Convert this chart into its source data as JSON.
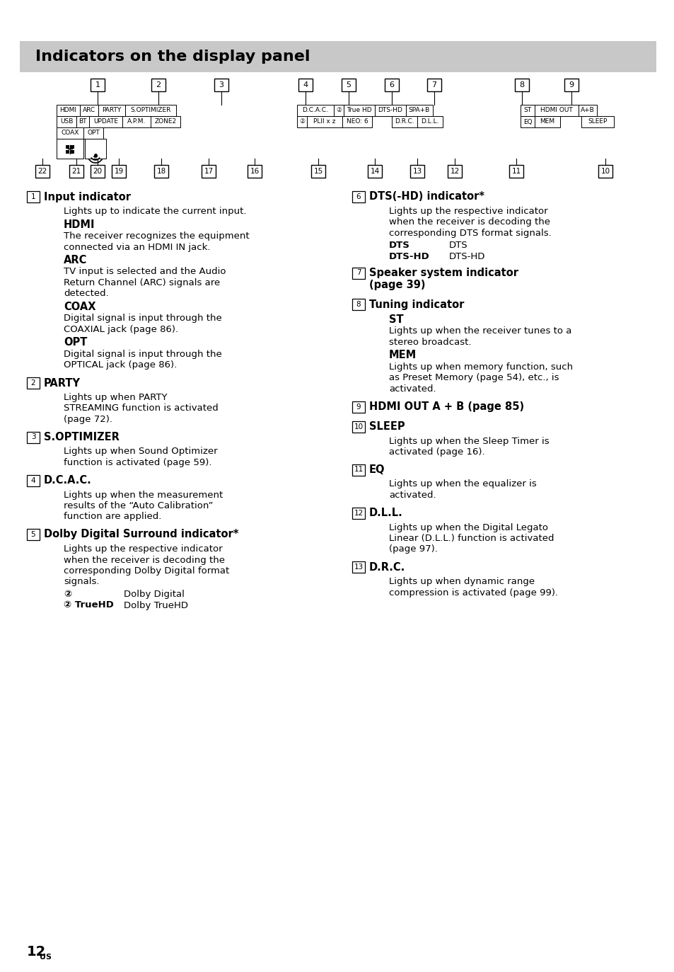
{
  "title": "Indicators on the display panel",
  "title_bg": "#c8c8c8",
  "page_bg": "#ffffff",
  "page_number": "12",
  "page_number_suffix": "US",
  "left_column": [
    {
      "num": "1",
      "heading": "Input indicator",
      "content": [
        {
          "type": "text",
          "text": "Lights up to indicate the current input."
        },
        {
          "type": "subheading",
          "text": "HDMI"
        },
        {
          "type": "text",
          "text": "The receiver recognizes the equipment\nconnected via an HDMI IN jack."
        },
        {
          "type": "subheading",
          "text": "ARC"
        },
        {
          "type": "text",
          "text": "TV input is selected and the Audio\nReturn Channel (ARC) signals are\ndetected."
        },
        {
          "type": "subheading",
          "text": "COAX"
        },
        {
          "type": "text",
          "text": "Digital signal is input through the\nCOAXIAL jack (page 86)."
        },
        {
          "type": "subheading",
          "text": "OPT"
        },
        {
          "type": "text",
          "text": "Digital signal is input through the\nOPTICAL jack (page 86)."
        }
      ]
    },
    {
      "num": "2",
      "heading": "PARTY",
      "content": [
        {
          "type": "text",
          "text": "Lights up when PARTY\nSTREAMING function is activated\n(page 72)."
        }
      ]
    },
    {
      "num": "3",
      "heading": "S.OPTIMIZER",
      "content": [
        {
          "type": "text",
          "text": "Lights up when Sound Optimizer\nfunction is activated (page 59)."
        }
      ]
    },
    {
      "num": "4",
      "heading": "D.C.A.C.",
      "content": [
        {
          "type": "text",
          "text": "Lights up when the measurement\nresults of the “Auto Calibration”\nfunction are applied."
        }
      ]
    },
    {
      "num": "5",
      "heading": "Dolby Digital Surround indicator*",
      "content": [
        {
          "type": "text",
          "text": "Lights up the respective indicator\nwhen the receiver is decoding the\ncorresponding Dolby Digital format\nsignals."
        },
        {
          "type": "tworow",
          "left": "②",
          "right": "Dolby Digital"
        },
        {
          "type": "tworow",
          "left": "② TrueHD",
          "right": "Dolby TrueHD"
        }
      ]
    }
  ],
  "right_column": [
    {
      "num": "6",
      "heading": "DTS(-HD) indicator*",
      "content": [
        {
          "type": "text",
          "text": "Lights up the respective indicator\nwhen the receiver is decoding the\ncorresponding DTS format signals."
        },
        {
          "type": "tworow",
          "left": "DTS",
          "right": "DTS"
        },
        {
          "type": "tworow",
          "left": "DTS-HD",
          "right": "DTS-HD"
        }
      ]
    },
    {
      "num": "7",
      "heading": "Speaker system indicator\n(page 39)",
      "content": []
    },
    {
      "num": "8",
      "heading": "Tuning indicator",
      "content": [
        {
          "type": "subheading",
          "text": "ST"
        },
        {
          "type": "text",
          "text": "Lights up when the receiver tunes to a\nstereo broadcast."
        },
        {
          "type": "subheading",
          "text": "MEM"
        },
        {
          "type": "text",
          "text": "Lights up when memory function, such\nas Preset Memory (page 54), etc., is\nactivated."
        }
      ]
    },
    {
      "num": "9",
      "heading": "HDMI OUT A + B (page 85)",
      "content": []
    },
    {
      "num": "10",
      "heading": "SLEEP",
      "content": [
        {
          "type": "text",
          "text": "Lights up when the Sleep Timer is\nactivated (page 16)."
        }
      ]
    },
    {
      "num": "11",
      "heading": "EQ",
      "content": [
        {
          "type": "text",
          "text": "Lights up when the equalizer is\nactivated."
        }
      ]
    },
    {
      "num": "12",
      "heading": "D.L.L.",
      "content": [
        {
          "type": "text",
          "text": "Lights up when the Digital Legato\nLinear (D.L.L.) function is activated\n(page 97)."
        }
      ]
    },
    {
      "num": "13",
      "heading": "D.R.C.",
      "content": [
        {
          "type": "text",
          "text": "Lights up when dynamic range\ncompression is activated (page 99)."
        }
      ]
    }
  ]
}
